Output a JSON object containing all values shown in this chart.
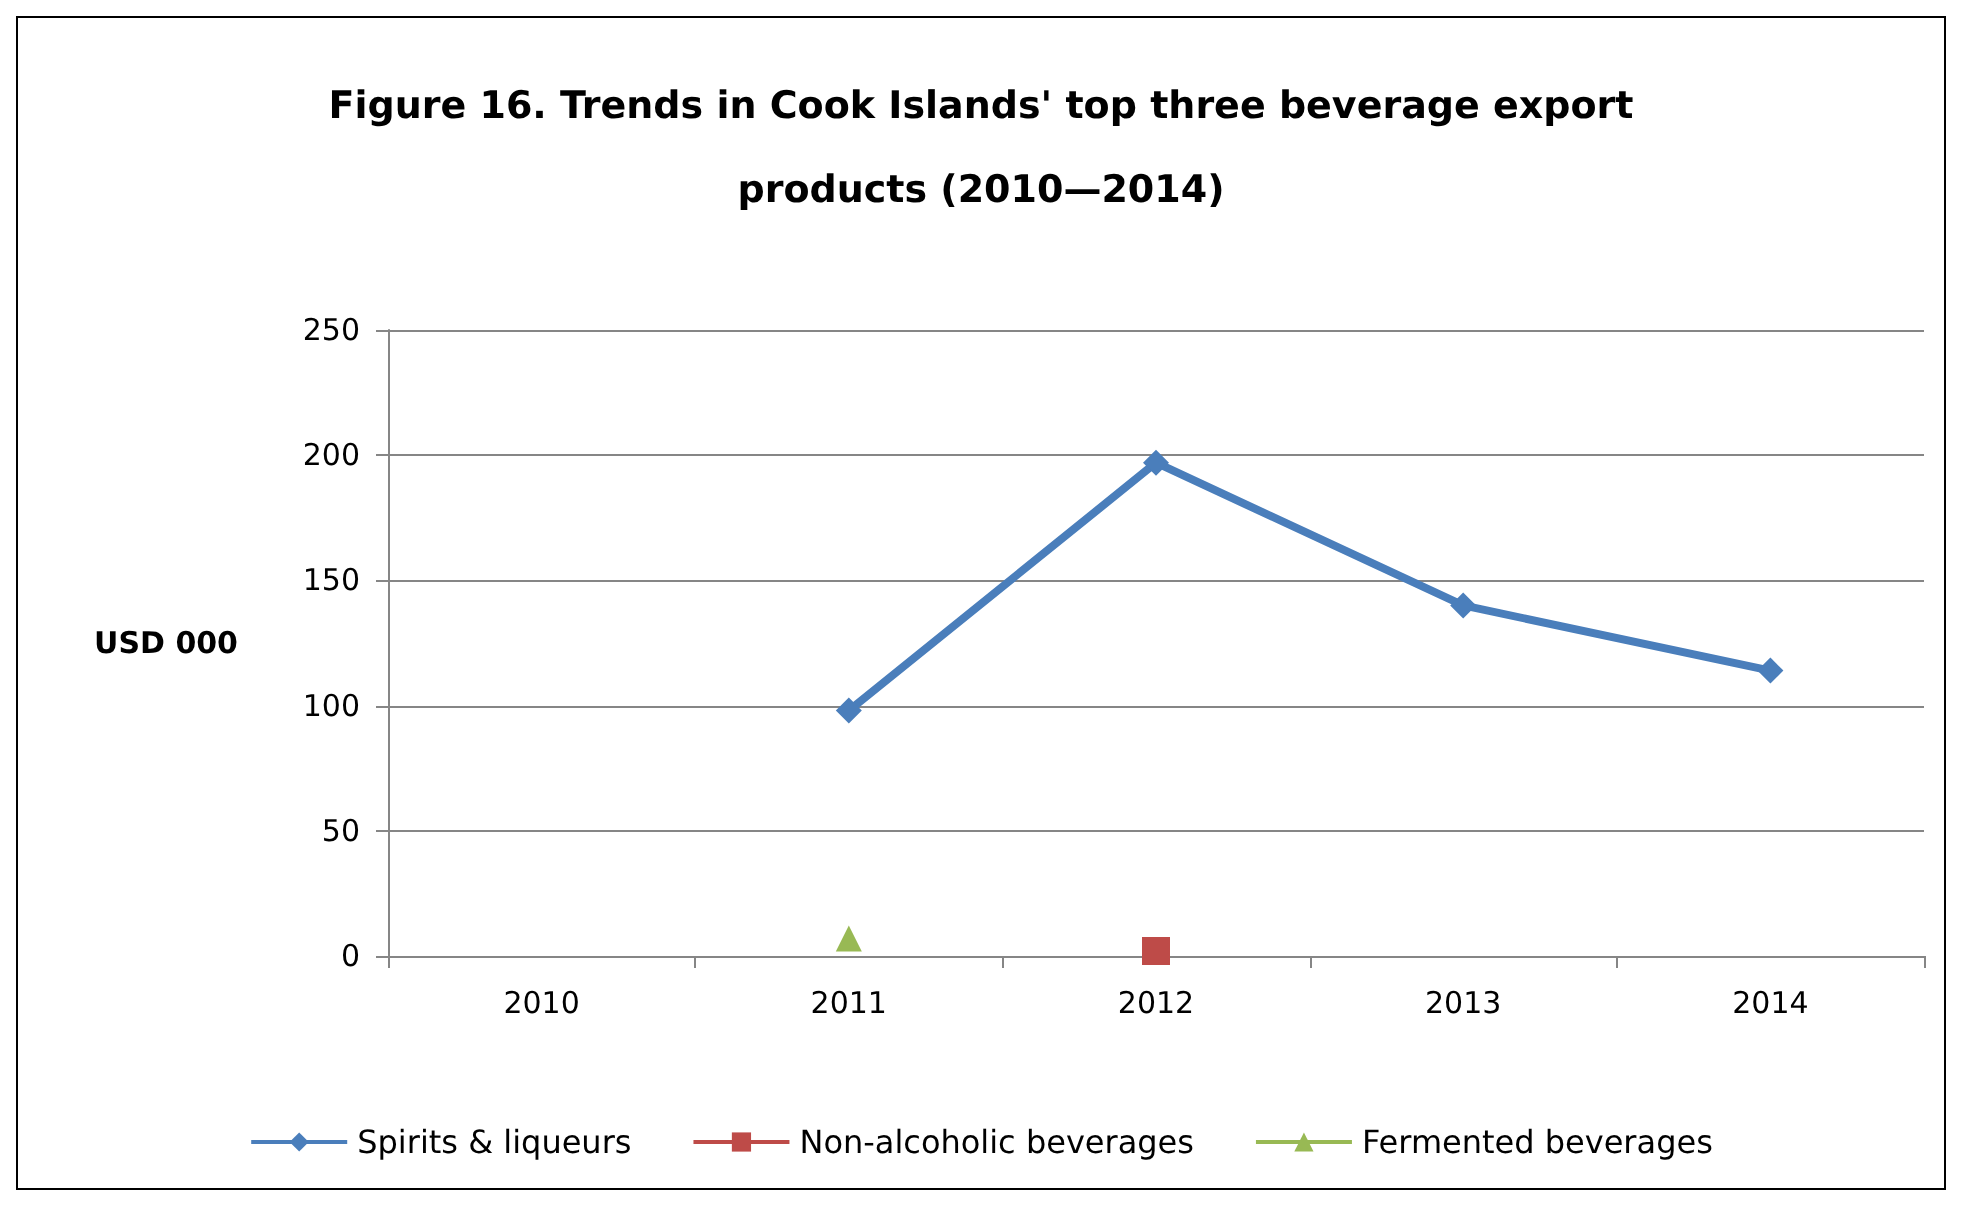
{
  "chart_data": {
    "type": "line",
    "title": "Figure 16. Trends in Cook Islands' top three beverage export\nproducts (2010—2014)",
    "ylabel": "USD 000",
    "categories": [
      "2010",
      "2011",
      "2012",
      "2013",
      "2014"
    ],
    "series": [
      {
        "name": "Spirits & liqueurs",
        "color": "#4a7ebb",
        "marker": "diamond",
        "values": [
          null,
          98,
          197,
          140,
          114
        ]
      },
      {
        "name": "Non-alcoholic beverages",
        "color": "#be4b48",
        "marker": "square",
        "values": [
          null,
          null,
          2,
          null,
          null
        ]
      },
      {
        "name": "Fermented beverages",
        "color": "#98b954",
        "marker": "triangle",
        "values": [
          null,
          7,
          null,
          null,
          null
        ]
      }
    ],
    "ylim": [
      0,
      250
    ],
    "yticks": [
      0,
      50,
      100,
      150,
      200,
      250
    ],
    "grid": "y",
    "legend": "bottom"
  }
}
